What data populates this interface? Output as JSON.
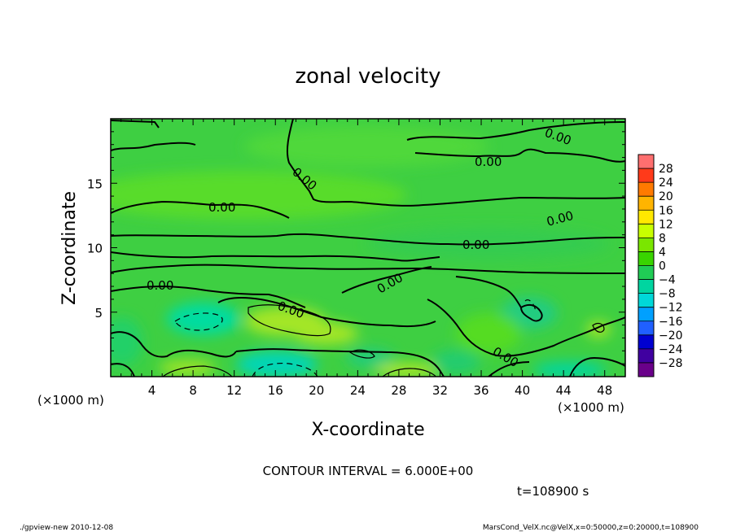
{
  "chart_data": {
    "type": "heatmap",
    "title": "zonal velocity",
    "xlabel": "X-coordinate",
    "ylabel": "Z-coordinate",
    "x_unit": "(×1000 m)",
    "y_unit": "(×1000 m)",
    "xlim": [
      0,
      50
    ],
    "ylim": [
      0,
      20
    ],
    "x_ticks": [
      4,
      8,
      12,
      16,
      20,
      24,
      28,
      32,
      36,
      40,
      44,
      48
    ],
    "y_ticks": [
      5,
      10,
      15
    ],
    "contour_interval_text": "CONTOUR INTERVAL = 6.000E+00",
    "time_text": "t=108900 s",
    "contour_labels": [
      "0.00",
      "0.00",
      "0.00",
      "0.00",
      "0.00",
      "0.00",
      "0.00",
      "0.00",
      "0.00",
      "0.00"
    ],
    "colorbar": {
      "levels": [
        28,
        24,
        20,
        16,
        12,
        8,
        4,
        0,
        -4,
        -8,
        -12,
        -16,
        -20,
        -24,
        -28
      ],
      "colors": [
        "#ff6f6f",
        "#ff3a1a",
        "#ff7a00",
        "#ffb400",
        "#ffe800",
        "#c8ff00",
        "#7ae600",
        "#39d400",
        "#20cc55",
        "#00d5a0",
        "#00d8d8",
        "#00a0ff",
        "#2060ff",
        "#0000d0",
        "#4000a0",
        "#6a008a"
      ]
    },
    "background_color": "#3ecf42"
  },
  "footer": {
    "left": "./gpview-new   2010-12-08",
    "right": "MarsCond_VelX.nc@VelX,x=0:50000,z=0:20000,t=108900"
  }
}
